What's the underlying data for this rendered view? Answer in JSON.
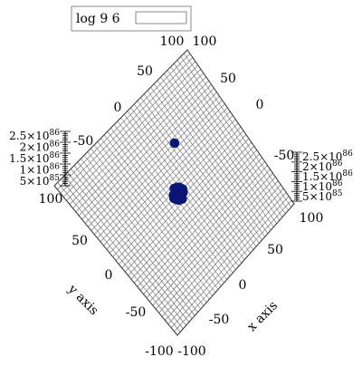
{
  "chart_data": {
    "type": "scatter",
    "view": "3d-top-down-rotated-45",
    "legend": {
      "label": "log 9 6",
      "placement": "top-left"
    },
    "xlabel": "x axis",
    "ylabel": "y axis",
    "xlim": [
      -100,
      100
    ],
    "ylim": [
      -100,
      100
    ],
    "x_ticks": [
      "-100",
      "-50",
      "0",
      "50",
      "100"
    ],
    "y_ticks": [
      "-100",
      "-50",
      "0",
      "50",
      "100"
    ],
    "z_ticks": [
      "5×10^85",
      "1×10^86",
      "1.5×10^86",
      "2×10^86",
      "2.5×10^86"
    ],
    "grid": true,
    "marker_color": "#0b1577",
    "series": [
      {
        "name": "log 9 6",
        "points": [
          {
            "x": 0,
            "y": 0
          },
          {
            "x": -2,
            "y": 2
          },
          {
            "x": 2,
            "y": -2
          },
          {
            "x": 3,
            "y": 3
          },
          {
            "x": -3,
            "y": -3
          },
          {
            "x": 1,
            "y": 4
          },
          {
            "x": 4,
            "y": 1
          },
          {
            "x": -4,
            "y": -1
          },
          {
            "x": -1,
            "y": -4
          },
          {
            "x": 5,
            "y": -3
          },
          {
            "x": -5,
            "y": 3
          },
          {
            "x": 2,
            "y": 6
          },
          {
            "x": 6,
            "y": 2
          },
          {
            "x": -6,
            "y": -2
          },
          {
            "x": -2,
            "y": -6
          },
          {
            "x": 0,
            "y": 7
          },
          {
            "x": 7,
            "y": 0
          },
          {
            "x": -7,
            "y": 0
          },
          {
            "x": 0,
            "y": -7
          },
          {
            "x": 4,
            "y": 5
          },
          {
            "x": 5,
            "y": 4
          },
          {
            "x": -4,
            "y": -5
          },
          {
            "x": 30,
            "y": 40
          }
        ]
      }
    ]
  }
}
